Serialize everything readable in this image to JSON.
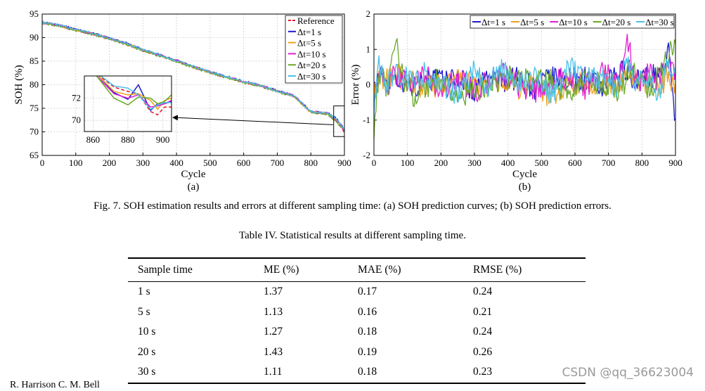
{
  "figure_caption": "Fig. 7. SOH estimation results and errors at different sampling time: (a) SOH prediction curves; (b) SOH prediction errors.",
  "table_caption": "Table IV. Statistical results at different sampling time.",
  "table": {
    "headers": [
      "Sample time",
      "ME (%)",
      "MAE (%)",
      "RMSE (%)"
    ],
    "rows": [
      [
        "1 s",
        "1.37",
        "0.17",
        "0.24"
      ],
      [
        "5 s",
        "1.13",
        "0.16",
        "0.21"
      ],
      [
        "10 s",
        "1.27",
        "0.18",
        "0.24"
      ],
      [
        "20 s",
        "1.43",
        "0.19",
        "0.26"
      ],
      [
        "30 s",
        "1.11",
        "0.18",
        "0.23"
      ]
    ]
  },
  "footer_text": "R. Harrison C. M. Bell",
  "watermark": "CSDN @qq_36623004",
  "chart_data": [
    {
      "type": "line",
      "panel_label": "(a)",
      "title": "",
      "xlabel": "Cycle",
      "ylabel": "SOH (%)",
      "xlim": [
        0,
        900
      ],
      "ylim": [
        65,
        95
      ],
      "xticks": [
        "0",
        "100",
        "200",
        "300",
        "400",
        "500",
        "600",
        "700",
        "800",
        "900"
      ],
      "yticks": [
        "65",
        "70",
        "75",
        "80",
        "85",
        "90",
        "95"
      ],
      "grid": true,
      "legend_position": "top-right",
      "x": [
        0,
        50,
        100,
        150,
        200,
        250,
        300,
        350,
        400,
        450,
        500,
        550,
        600,
        650,
        700,
        750,
        800,
        850,
        880,
        900
      ],
      "series": [
        {
          "name": "Reference",
          "color": "#e8182a",
          "values": [
            93.2,
            92.6,
            91.6,
            90.8,
            89.8,
            88.6,
            87.2,
            86.2,
            85.0,
            83.8,
            82.6,
            81.6,
            80.6,
            79.8,
            78.6,
            77.6,
            74.2,
            73.8,
            72.0,
            70.0
          ]
        },
        {
          "name": "Δt=1 s",
          "color": "#1a1ad0",
          "values": [
            93.2,
            92.7,
            91.7,
            90.9,
            89.9,
            88.8,
            87.4,
            86.3,
            85.1,
            83.9,
            82.7,
            81.7,
            80.7,
            79.9,
            78.7,
            77.7,
            74.3,
            74.0,
            72.6,
            70.5
          ]
        },
        {
          "name": "Δt=5 s",
          "color": "#f0a020",
          "values": [
            93.1,
            92.6,
            91.6,
            90.8,
            89.8,
            88.7,
            87.3,
            86.2,
            85.0,
            83.8,
            82.6,
            81.6,
            80.6,
            79.8,
            78.6,
            77.6,
            74.2,
            73.9,
            72.2,
            70.2
          ]
        },
        {
          "name": "Δt=10 s",
          "color": "#e020d0",
          "values": [
            93.2,
            92.6,
            91.7,
            90.8,
            89.9,
            88.7,
            87.3,
            86.3,
            85.1,
            83.8,
            82.7,
            81.6,
            80.7,
            79.8,
            78.7,
            77.6,
            74.3,
            73.9,
            72.3,
            70.3
          ]
        },
        {
          "name": "Δt=20 s",
          "color": "#6aaa2a",
          "values": [
            93.0,
            92.5,
            91.5,
            90.7,
            89.7,
            88.6,
            87.2,
            86.1,
            84.9,
            83.7,
            82.5,
            81.5,
            80.5,
            79.7,
            78.5,
            77.5,
            74.1,
            73.8,
            71.8,
            70.6
          ]
        },
        {
          "name": "Δt=30 s",
          "color": "#4ac0e8",
          "values": [
            93.2,
            92.7,
            91.7,
            90.9,
            89.9,
            88.7,
            87.4,
            86.3,
            85.1,
            83.9,
            82.7,
            81.7,
            80.7,
            79.9,
            78.7,
            77.7,
            74.3,
            74.0,
            72.4,
            70.4
          ]
        }
      ],
      "inset": {
        "xlim": [
          855,
          905
        ],
        "ylim": [
          69,
          74
        ],
        "xticks": [
          "860",
          "880",
          "900"
        ],
        "yticks": [
          "70",
          "72"
        ]
      }
    },
    {
      "type": "line",
      "panel_label": "(b)",
      "title": "",
      "xlabel": "Cycle",
      "ylabel": "Error (%)",
      "xlim": [
        0,
        900
      ],
      "ylim": [
        -2,
        2
      ],
      "xticks": [
        "0",
        "100",
        "200",
        "300",
        "400",
        "500",
        "600",
        "700",
        "800",
        "900"
      ],
      "yticks": [
        "-2",
        "-1",
        "0",
        "1",
        "2"
      ],
      "grid": true,
      "legend_position": "top",
      "x": [
        0,
        15,
        40,
        65,
        90,
        120,
        150,
        200,
        250,
        300,
        330,
        380,
        430,
        480,
        530,
        580,
        630,
        680,
        730,
        755,
        780,
        820,
        850,
        880,
        900
      ],
      "series": [
        {
          "name": "Δt=1 s",
          "color": "#1a1ad0",
          "values": [
            -0.2,
            0.3,
            0.1,
            0.3,
            0.1,
            -0.1,
            0.2,
            0.1,
            0.2,
            -0.2,
            0.2,
            0.1,
            0.2,
            -0.1,
            0.2,
            0.1,
            0.2,
            -0.1,
            0.3,
            0.5,
            0.1,
            0.2,
            0.3,
            0.9,
            -1.0
          ]
        },
        {
          "name": "Δt=5 s",
          "color": "#f0a020",
          "values": [
            -0.4,
            0.1,
            0.2,
            0.4,
            0.0,
            0.1,
            -0.1,
            0.0,
            0.1,
            0.1,
            -0.1,
            0.1,
            -0.2,
            0.1,
            -0.4,
            0.1,
            0.0,
            0.1,
            -0.1,
            0.6,
            0.0,
            0.1,
            -0.1,
            0.3,
            -0.1
          ]
        },
        {
          "name": "Δt=10 s",
          "color": "#e020d0",
          "values": [
            -0.3,
            0.2,
            -0.1,
            0.3,
            0.2,
            0.0,
            0.3,
            -0.2,
            0.2,
            -0.2,
            0.0,
            0.3,
            0.0,
            -0.2,
            0.1,
            0.2,
            -0.1,
            0.4,
            0.0,
            1.4,
            0.1,
            0.3,
            0.1,
            0.6,
            0.2
          ]
        },
        {
          "name": "Δt=20 s",
          "color": "#6aaa2a",
          "values": [
            -1.2,
            0.4,
            -0.2,
            1.2,
            0.1,
            -0.3,
            -0.1,
            0.2,
            -0.4,
            -0.2,
            -0.1,
            0.2,
            0.2,
            0.1,
            0.1,
            -0.2,
            0.2,
            0.0,
            -0.2,
            0.2,
            0.4,
            -0.1,
            0.2,
            0.9,
            1.4
          ]
        },
        {
          "name": "Δt=30 s",
          "color": "#4ac0e8",
          "values": [
            -0.6,
            0.5,
            0.0,
            0.4,
            0.2,
            0.1,
            0.3,
            0.0,
            -0.3,
            0.4,
            -0.1,
            0.4,
            0.1,
            0.2,
            -0.3,
            0.5,
            0.3,
            0.2,
            -0.1,
            0.8,
            0.0,
            0.2,
            -0.2,
            0.6,
            0.4
          ]
        }
      ]
    }
  ]
}
